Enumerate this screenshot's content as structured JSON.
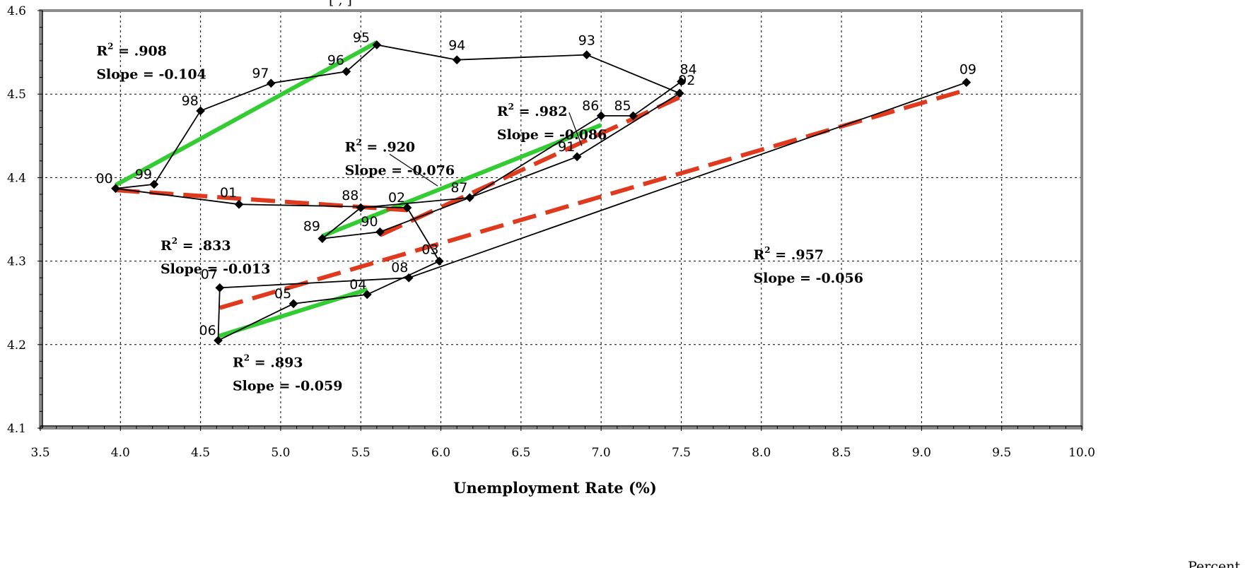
{
  "top_caption": "[                                                                ,                                    ]",
  "corner_text": "Percent",
  "chart_data": {
    "type": "scatter",
    "xlabel": "Unemployment Rate (%)",
    "ylabel": "",
    "xlim": [
      3.5,
      10.0
    ],
    "ylim": [
      4.1,
      4.6
    ],
    "x_ticks": [
      "3.5",
      "4.0",
      "4.5",
      "5.0",
      "5.5",
      "6.0",
      "6.5",
      "7.0",
      "7.5",
      "8.0",
      "8.5",
      "9.0",
      "9.5",
      "10.0"
    ],
    "y_ticks": [
      "4.1",
      "4.2",
      "4.3",
      "4.4",
      "4.5",
      "4.6"
    ],
    "grid": true,
    "colors": {
      "path": "#000000",
      "green_fit": "#33cc33",
      "red_fit": "#e03a1e",
      "frame": "#8a8a8a"
    },
    "points": [
      {
        "label": "84",
        "x": 7.5,
        "y": 4.515
      },
      {
        "label": "85",
        "x": 7.2,
        "y": 4.474
      },
      {
        "label": "86",
        "x": 7.0,
        "y": 4.474
      },
      {
        "label": "87",
        "x": 6.18,
        "y": 4.376
      },
      {
        "label": "88",
        "x": 5.5,
        "y": 4.364
      },
      {
        "label": "89",
        "x": 5.26,
        "y": 4.327
      },
      {
        "label": "90",
        "x": 5.62,
        "y": 4.335
      },
      {
        "label": "91",
        "x": 6.85,
        "y": 4.425
      },
      {
        "label": "92",
        "x": 7.49,
        "y": 4.501
      },
      {
        "label": "93",
        "x": 6.91,
        "y": 4.547
      },
      {
        "label": "94",
        "x": 6.1,
        "y": 4.541
      },
      {
        "label": "95",
        "x": 5.6,
        "y": 4.559
      },
      {
        "label": "96",
        "x": 5.41,
        "y": 4.527
      },
      {
        "label": "97",
        "x": 4.94,
        "y": 4.513
      },
      {
        "label": "98",
        "x": 4.5,
        "y": 4.48
      },
      {
        "label": "99",
        "x": 4.21,
        "y": 4.392
      },
      {
        "label": "00",
        "x": 3.97,
        "y": 4.387
      },
      {
        "label": "01",
        "x": 4.74,
        "y": 4.368
      },
      {
        "label": "02",
        "x": 5.79,
        "y": 4.364
      },
      {
        "label": "03",
        "x": 5.99,
        "y": 4.3
      },
      {
        "label": "04",
        "x": 5.54,
        "y": 4.26
      },
      {
        "label": "05",
        "x": 5.08,
        "y": 4.249
      },
      {
        "label": "06",
        "x": 4.61,
        "y": 4.205
      },
      {
        "label": "07",
        "x": 4.62,
        "y": 4.268
      },
      {
        "label": "08",
        "x": 5.8,
        "y": 4.28
      },
      {
        "label": "09",
        "x": 9.28,
        "y": 4.514
      }
    ],
    "fit_lines": [
      {
        "color": "green",
        "dashed": false,
        "x1": 3.97,
        "y1": 4.391,
        "x2": 5.6,
        "y2": 4.562
      },
      {
        "color": "green",
        "dashed": false,
        "x1": 5.26,
        "y1": 4.33,
        "x2": 7.0,
        "y2": 4.463
      },
      {
        "color": "green",
        "dashed": false,
        "x1": 4.61,
        "y1": 4.21,
        "x2": 5.54,
        "y2": 4.266
      },
      {
        "color": "red",
        "dashed": true,
        "x1": 3.97,
        "y1": 4.385,
        "x2": 5.79,
        "y2": 4.361
      },
      {
        "color": "red",
        "dashed": true,
        "x1": 5.62,
        "y1": 4.331,
        "x2": 7.5,
        "y2": 4.497
      },
      {
        "color": "red",
        "dashed": true,
        "x1": 4.62,
        "y1": 4.244,
        "x2": 9.28,
        "y2": 4.505
      }
    ],
    "annotations": [
      {
        "r2": ".908",
        "slope": "Slope = -0.104",
        "x": 3.85,
        "y": 4.563
      },
      {
        "r2": ".982",
        "slope": "Slope = -0.086",
        "x": 6.35,
        "y": 4.491
      },
      {
        "r2": ".920",
        "slope": "Slope = -0.076",
        "x": 5.4,
        "y": 4.448
      },
      {
        "r2": ".833",
        "slope": "Slope = -0.013",
        "x": 4.25,
        "y": 4.33
      },
      {
        "r2": ".957",
        "slope": "Slope = -0.056",
        "x": 7.95,
        "y": 4.319
      },
      {
        "r2": ".893",
        "slope": "Slope = -0.059",
        "x": 4.7,
        "y": 4.19
      }
    ]
  }
}
